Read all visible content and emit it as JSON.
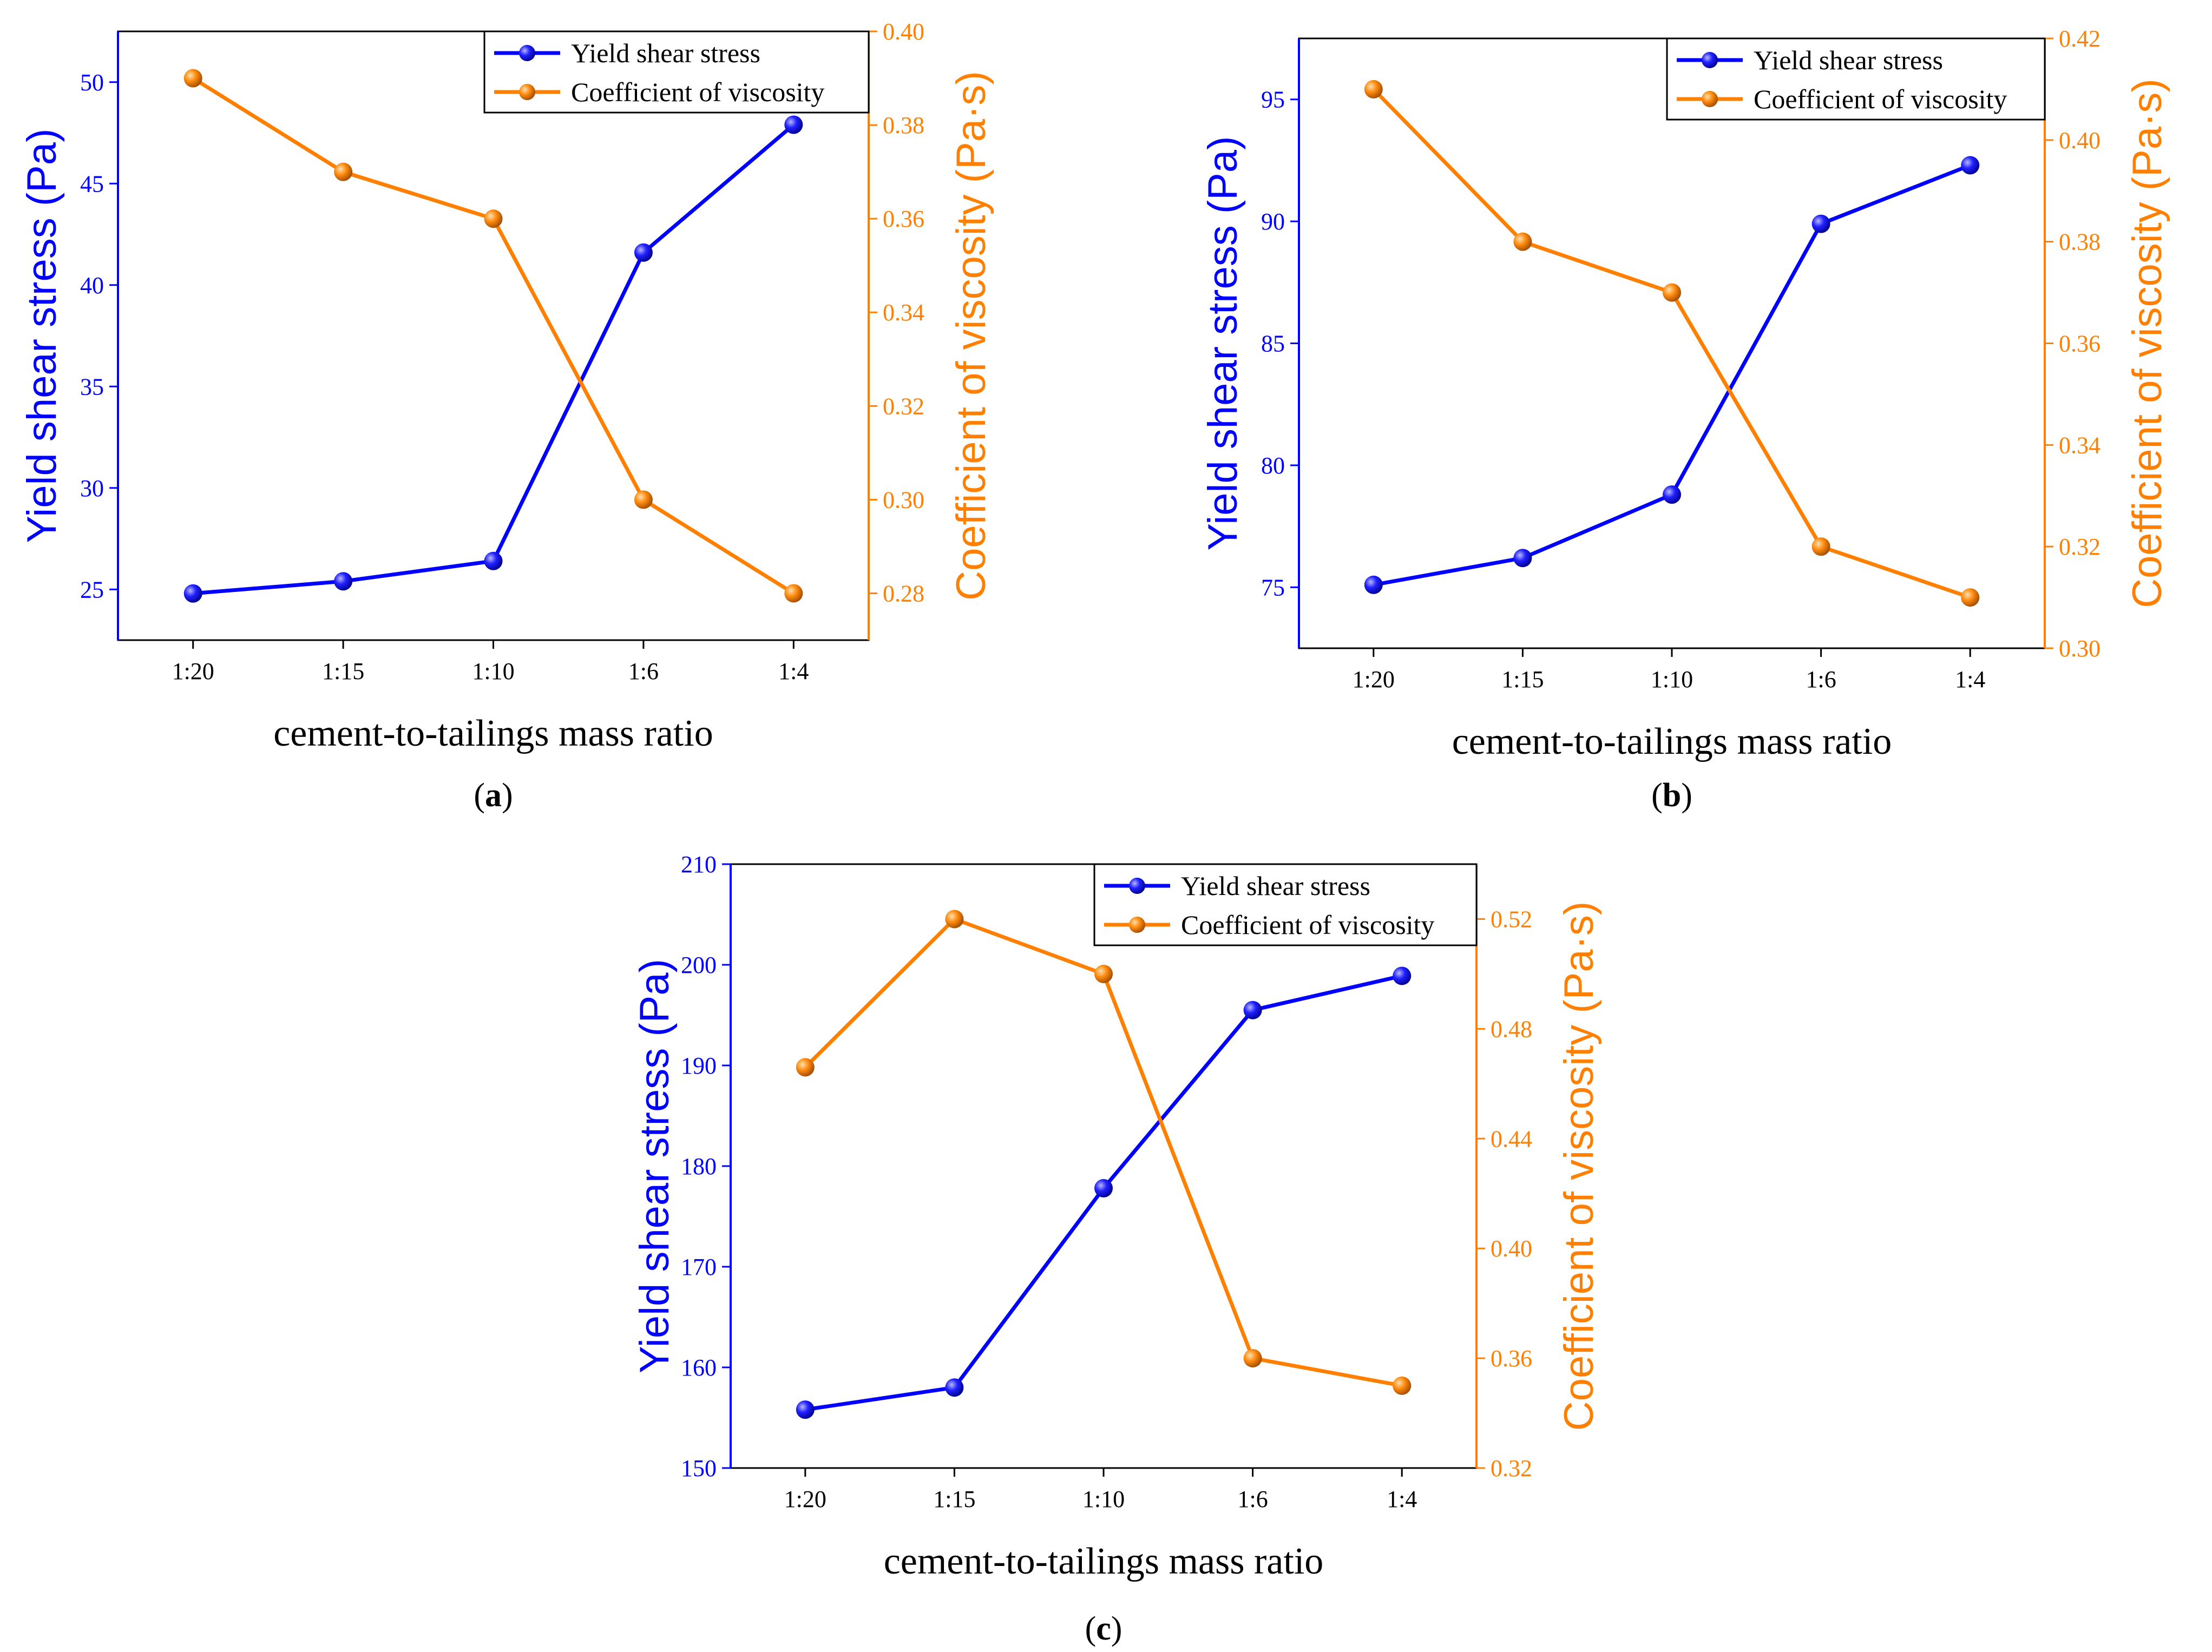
{
  "chart_data": [
    {
      "type": "line",
      "panel_label": "a",
      "categories": [
        "1:20",
        "1:15",
        "1:10",
        "1:6",
        "1:4"
      ],
      "xlabel": "cement-to-tailings mass ratio",
      "ylabel": "Yield shear stress (Pa)",
      "y2label": "Coefficient of viscosity (Pa·s)",
      "ylim": [
        22.5,
        52.5
      ],
      "yticks": [
        25,
        30,
        35,
        40,
        45,
        50
      ],
      "y2lim": [
        0.27,
        0.4
      ],
      "y2ticks": [
        "0.28",
        "0.30",
        "0.32",
        "0.34",
        "0.36",
        "0.38",
        "0.40"
      ],
      "series": [
        {
          "name": "Yield shear stress",
          "axis": "left",
          "color": "#0000ff",
          "values": [
            24.8,
            25.4,
            26.4,
            41.6,
            47.9
          ]
        },
        {
          "name": "Coefficient of viscosity",
          "axis": "right",
          "color": "#ff8000",
          "values": [
            0.39,
            0.37,
            0.36,
            0.3,
            0.28
          ]
        }
      ],
      "legend_position": "top-right"
    },
    {
      "type": "line",
      "panel_label": "b",
      "categories": [
        "1:20",
        "1:15",
        "1:10",
        "1:6",
        "1:4"
      ],
      "xlabel": "cement-to-tailings mass ratio",
      "ylabel": "Yield shear stress (Pa)",
      "y2label": "Coefficient of viscosity (Pa·s)",
      "ylim": [
        72.5,
        97.5
      ],
      "yticks": [
        75,
        80,
        85,
        90,
        95
      ],
      "y2lim": [
        0.3,
        0.42
      ],
      "y2ticks": [
        "0.30",
        "0.32",
        "0.34",
        "0.36",
        "0.38",
        "0.40",
        "0.42"
      ],
      "series": [
        {
          "name": "Yield shear stress",
          "axis": "left",
          "color": "#0000ff",
          "values": [
            75.1,
            76.2,
            78.8,
            89.9,
            92.3
          ]
        },
        {
          "name": "Coefficient of viscosity",
          "axis": "right",
          "color": "#ff8000",
          "values": [
            0.41,
            0.38,
            0.37,
            0.32,
            0.31
          ]
        }
      ],
      "legend_position": "top-right"
    },
    {
      "type": "line",
      "panel_label": "c",
      "categories": [
        "1:20",
        "1:15",
        "1:10",
        "1:6",
        "1:4"
      ],
      "xlabel": "cement-to-tailings mass ratio",
      "ylabel": "Yield shear stress (Pa)",
      "y2label": "Coefficient of viscosity (Pa·s)",
      "ylim": [
        150,
        210
      ],
      "yticks": [
        150,
        160,
        170,
        180,
        190,
        200,
        210
      ],
      "y2lim": [
        0.32,
        0.54
      ],
      "y2ticks": [
        "0.32",
        "0.36",
        "0.40",
        "0.44",
        "0.48",
        "0.52"
      ],
      "series": [
        {
          "name": "Yield shear stress",
          "axis": "left",
          "color": "#0000ff",
          "values": [
            155.8,
            158.0,
            177.8,
            195.5,
            198.9
          ]
        },
        {
          "name": "Coefficient of viscosity",
          "axis": "right",
          "color": "#ff8000",
          "values": [
            0.466,
            0.52,
            0.5,
            0.36,
            0.35
          ]
        }
      ],
      "legend_position": "top-right"
    }
  ]
}
